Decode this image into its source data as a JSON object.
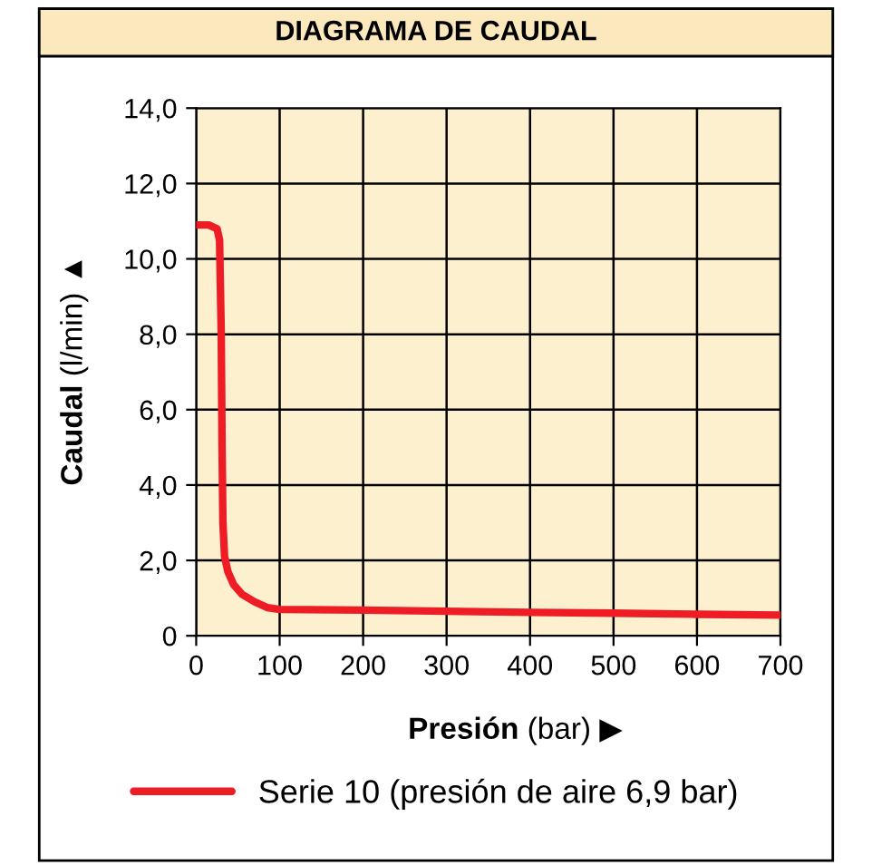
{
  "chart_data": {
    "type": "line",
    "title": "DIAGRAMA DE CAUDAL",
    "xlabel": "Presión (bar) ▶",
    "ylabel": "Caudal (l/min) ▲",
    "x": [
      0,
      15,
      25,
      28,
      30,
      31,
      32,
      34,
      38,
      45,
      55,
      70,
      85,
      100,
      200,
      300,
      400,
      500,
      600,
      700
    ],
    "series": [
      {
        "name": "Serie 10 (presión de aire 6,9 bar)",
        "color": "#ee1c25",
        "values": [
          10.9,
          10.9,
          10.8,
          10.5,
          8.0,
          5.0,
          3.0,
          2.1,
          1.7,
          1.35,
          1.1,
          0.9,
          0.75,
          0.7,
          0.68,
          0.65,
          0.62,
          0.6,
          0.57,
          0.55
        ]
      }
    ],
    "xlim": [
      0,
      700
    ],
    "ylim": [
      0,
      14
    ],
    "xticks": [
      0,
      100,
      200,
      300,
      400,
      500,
      600,
      700
    ],
    "yticks": [
      0,
      {
        "value": 2,
        "label": "2,0"
      },
      {
        "value": 4,
        "label": "4,0"
      },
      {
        "value": 6,
        "label": "6,0"
      },
      {
        "value": 8,
        "label": "8,0"
      },
      {
        "value": 10,
        "label": "10,0"
      },
      {
        "value": 12,
        "label": "12,0"
      },
      {
        "value": 14,
        "label": "14,0"
      }
    ],
    "grid": true,
    "legend": "bottom",
    "marker": "none",
    "line_style": "solid"
  }
}
